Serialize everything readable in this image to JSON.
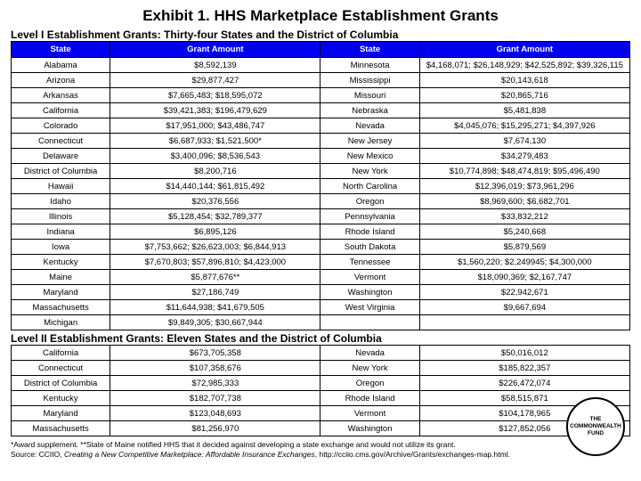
{
  "title": "Exhibit 1. HHS Marketplace Establishment Grants",
  "section1": {
    "subtitle": "Level I Establishment Grants: Thirty-four States and the District of Columbia",
    "headers": [
      "State",
      "Grant Amount",
      "State",
      "Grant Amount"
    ],
    "rows": [
      [
        "Alabama",
        "$8,592,139",
        "Minnesota",
        "$4,168,071; $26,148,929; $42,525,892; $39,326,115"
      ],
      [
        "Arizona",
        "$29,877,427",
        "Mississippi",
        "$20,143,618"
      ],
      [
        "Arkansas",
        "$7,665,483; $18,595,072",
        "Missouri",
        "$20,865,716"
      ],
      [
        "California",
        "$39,421,383; $196,479,629",
        "Nebraska",
        "$5,481,838"
      ],
      [
        "Colorado",
        "$17,951,000; $43,486,747",
        "Nevada",
        "$4,045,076; $15,295,271; $4,397,926"
      ],
      [
        "Connecticut",
        "$6,687,933; $1,521,500*",
        "New Jersey",
        "$7,674,130"
      ],
      [
        "Delaware",
        "$3,400,096; $8,536,543",
        "New Mexico",
        "$34,279,483"
      ],
      [
        "District of Columbia",
        "$8,200,716",
        "New York",
        "$10,774,898; $48,474,819; $95,496,490"
      ],
      [
        "Hawaii",
        "$14,440,144; $61,815,492",
        "North Carolina",
        "$12,396,019; $73,961,296"
      ],
      [
        "Idaho",
        "$20,376,556",
        "Oregon",
        "$8,969,600; $6,682,701"
      ],
      [
        "Illinois",
        "$5,128,454; $32,789,377",
        "Pennsylvania",
        "$33,832,212"
      ],
      [
        "Indiana",
        "$6,895,126",
        "Rhode Island",
        "$5,240,668"
      ],
      [
        "Iowa",
        "$7,753,662; $26,623,003; $6,844,913",
        "South Dakota",
        "$5,879,569"
      ],
      [
        "Kentucky",
        "$7,670,803; $57,896,810; $4,423,000",
        "Tennessee",
        "$1,560,220; $2,249945; $4,300,000"
      ],
      [
        "Maine",
        "$5,877,676**",
        "Vermont",
        "$18,090,369; $2,167,747"
      ],
      [
        "Maryland",
        "$27,186,749",
        "Washington",
        "$22,942,671"
      ],
      [
        "Massachusetts",
        "$11,644,938; $41,679,505",
        "West Virginia",
        "$9,667,694"
      ],
      [
        "Michigan",
        "$9,849,305; $30,667,944",
        "",
        ""
      ]
    ]
  },
  "section2": {
    "subtitle": "Level II Establishment Grants: Eleven States and the District of Columbia",
    "rows": [
      [
        "California",
        "$673,705,358",
        "Nevada",
        "$50,016,012"
      ],
      [
        "Connecticut",
        "$107,358,676",
        "New York",
        "$185,822,357"
      ],
      [
        "District of Columbia",
        "$72,985,333",
        "Oregon",
        "$226,472,074"
      ],
      [
        "Kentucky",
        "$182,707,738",
        "Rhode Island",
        "$58,515,871"
      ],
      [
        "Maryland",
        "$123,048,693",
        "Vermont",
        "$104,178,965"
      ],
      [
        "Massachusetts",
        "$81,256,970",
        "Washington",
        "$127,852,056"
      ]
    ]
  },
  "footnote": {
    "line1": "*Award supplement. **State of Maine notified HHS that it decided against developing a state exchange and would not utilize its grant.",
    "line2a": "Source: CCIIO, ",
    "line2b": "Creating a New Competitive Marketplace: Affordable Insurance Exchanges",
    "line2c": ", http://cciio.cms.gov/Archive/Grants/exchanges-map.html."
  },
  "badge": {
    "l1": "THE",
    "l2": "COMMONWEALTH",
    "l3": "FUND"
  },
  "colors": {
    "header_bg": "#0000ee",
    "header_fg": "#ffffff",
    "border": "#000000",
    "bg": "#ffffff"
  }
}
